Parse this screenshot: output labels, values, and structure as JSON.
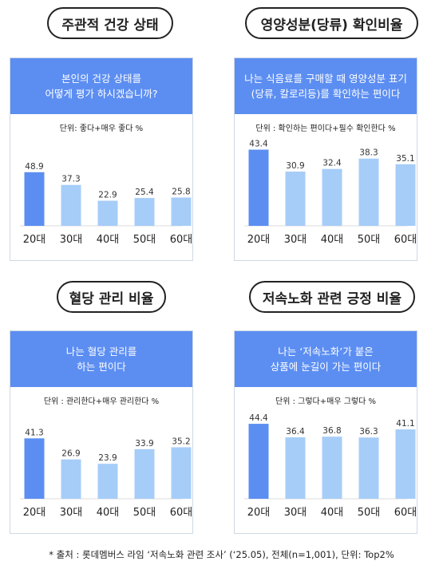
{
  "sections": [
    {
      "pill": "주관적 건강 상태",
      "question": [
        "본인의 건강 상태를",
        "어떻게 평가 하시겠습니까?"
      ],
      "unit": "단위: 좋다+매우 좋다 %"
    },
    {
      "pill": "영양성분(당류) 확인비율",
      "question": [
        "나는 식음료를 구매할 때 영양성분 표기",
        "(당류, 칼로리등)를 확인하는 편이다"
      ],
      "unit": "단위 : 확인하는 편이다+필수 확인한다 %"
    },
    {
      "pill": "혈당 관리 비율",
      "question": [
        "나는 혈당 관리를",
        "하는 편이다"
      ],
      "unit": "단위 : 관리한다+매우 관리한다 %"
    },
    {
      "pill": "저속노화 관련 긍정 비율",
      "question": [
        "나는 ‘저속노화’가 붙은",
        "상품에 눈길이 가는 편이다"
      ],
      "unit": "단위 : 그렇다+매우 그렇다 %"
    }
  ],
  "footer": "* 출처 : 롯데멤버스 라임 ‘저속노화 관련 조사’ (‘25.05), 전체(n=1,001), 단위: Top2%",
  "colors": {
    "highlight": "#5c8ef2",
    "bar": "#a6cdf8",
    "header": "#5c8ef2",
    "axis": "#dddddd"
  },
  "chart_data": [
    {
      "type": "bar",
      "categories": [
        "20대",
        "30대",
        "40대",
        "50대",
        "60대"
      ],
      "values": [
        48.9,
        37.3,
        22.9,
        25.4,
        25.8
      ],
      "ylim": [
        0,
        80
      ]
    },
    {
      "type": "bar",
      "categories": [
        "20대",
        "30대",
        "40대",
        "50대",
        "60대"
      ],
      "values": [
        43.4,
        30.9,
        32.4,
        38.3,
        35.1
      ],
      "ylim": [
        0,
        50
      ]
    },
    {
      "type": "bar",
      "categories": [
        "20대",
        "30대",
        "40대",
        "50대",
        "60대"
      ],
      "values": [
        41.3,
        26.9,
        23.9,
        33.9,
        35.2
      ],
      "ylim": [
        0,
        60
      ]
    },
    {
      "type": "bar",
      "categories": [
        "20대",
        "30대",
        "40대",
        "50대",
        "60대"
      ],
      "values": [
        44.4,
        36.4,
        36.8,
        36.3,
        41.1
      ],
      "ylim": [
        0,
        52
      ]
    }
  ]
}
